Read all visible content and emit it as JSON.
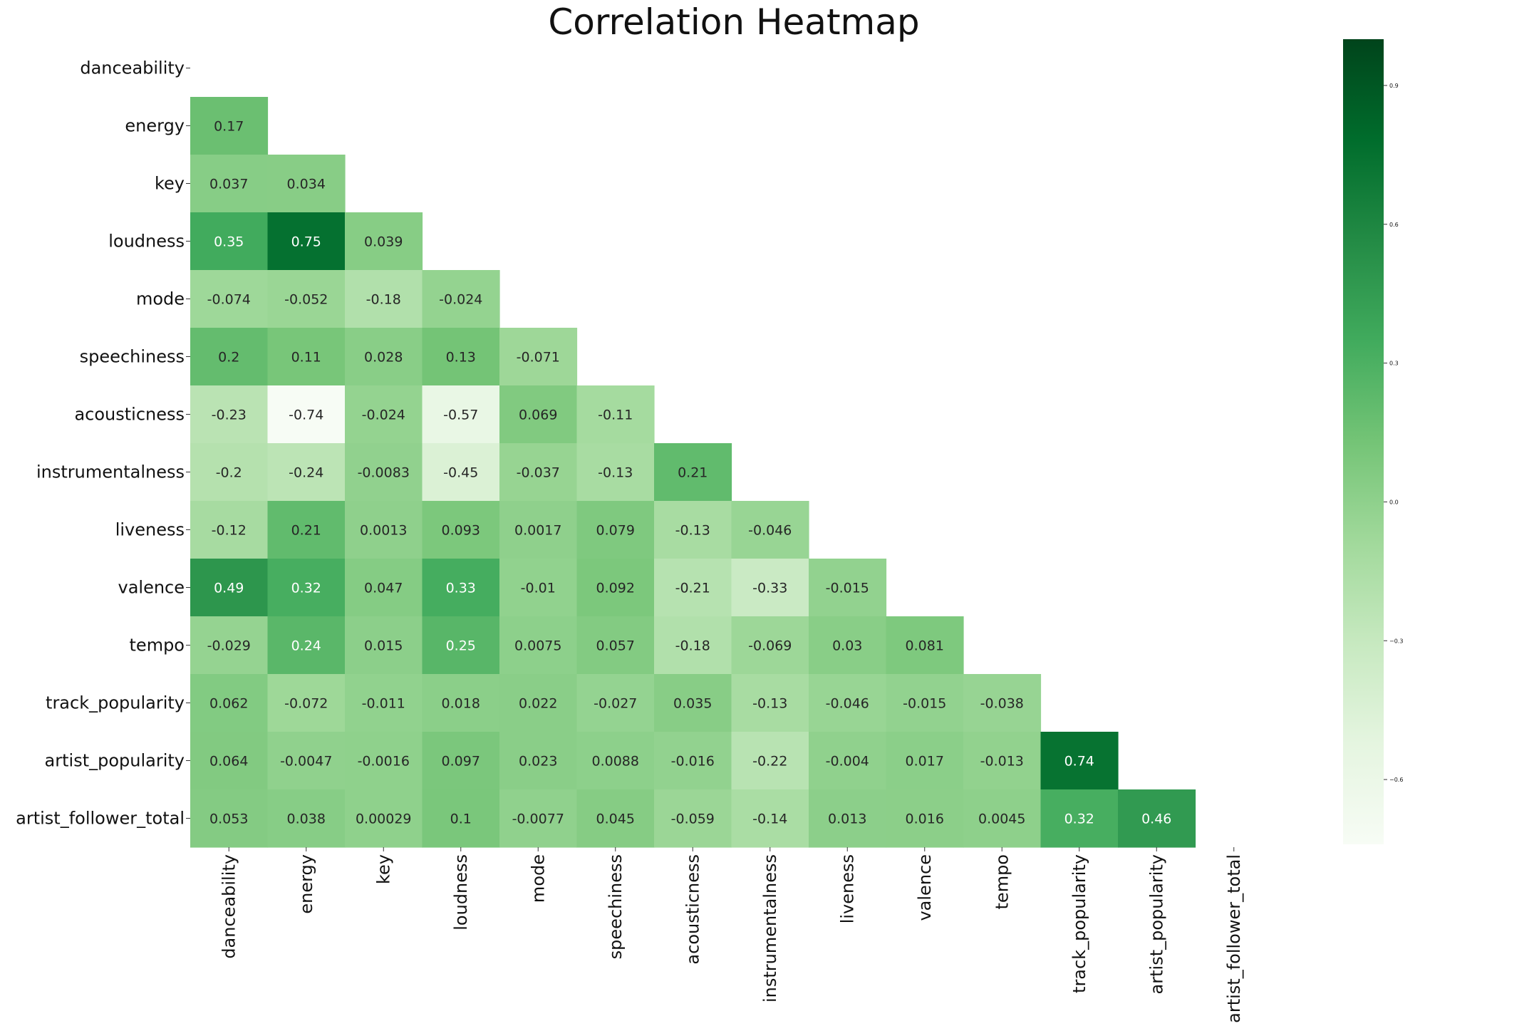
{
  "chart_data": {
    "type": "heatmap",
    "title": "Correlation Heatmap",
    "xlabel": "",
    "ylabel": "",
    "mask": "upper-triangle-including-diagonal",
    "labels": [
      "danceability",
      "energy",
      "key",
      "loudness",
      "mode",
      "speechiness",
      "acousticness",
      "instrumentalness",
      "liveness",
      "valence",
      "tempo",
      "track_popularity",
      "artist_popularity",
      "artist_follower_total"
    ],
    "matrix_lower": [
      [],
      [
        "0.17"
      ],
      [
        "0.037",
        "0.034"
      ],
      [
        "0.35",
        "0.75",
        "0.039"
      ],
      [
        "-0.074",
        "-0.052",
        "-0.18",
        "-0.024"
      ],
      [
        "0.2",
        "0.11",
        "0.028",
        "0.13",
        "-0.071"
      ],
      [
        "-0.23",
        "-0.74",
        "-0.024",
        "-0.57",
        "0.069",
        "-0.11"
      ],
      [
        "-0.2",
        "-0.24",
        "-0.0083",
        "-0.45",
        "-0.037",
        "-0.13",
        "0.21"
      ],
      [
        "-0.12",
        "0.21",
        "0.0013",
        "0.093",
        "0.0017",
        "0.079",
        "-0.13",
        "-0.046"
      ],
      [
        "0.49",
        "0.32",
        "0.047",
        "0.33",
        "-0.01",
        "0.092",
        "-0.21",
        "-0.33",
        "-0.015"
      ],
      [
        "-0.029",
        "0.24",
        "0.015",
        "0.25",
        "0.0075",
        "0.057",
        "-0.18",
        "-0.069",
        "0.03",
        "0.081"
      ],
      [
        "0.062",
        "-0.072",
        "-0.011",
        "0.018",
        "0.022",
        "-0.027",
        "0.035",
        "-0.13",
        "-0.046",
        "-0.015",
        "-0.038"
      ],
      [
        "0.064",
        "-0.0047",
        "-0.0016",
        "0.097",
        "0.023",
        "0.0088",
        "-0.016",
        "-0.22",
        "-0.004",
        "0.017",
        "-0.013",
        "0.74"
      ],
      [
        "0.053",
        "0.038",
        "0.00029",
        "0.1",
        "-0.0077",
        "0.045",
        "-0.059",
        "-0.14",
        "0.013",
        "0.016",
        "0.0045",
        "0.32",
        "0.46"
      ]
    ],
    "colormap": "Greens",
    "color_range": [
      -0.74,
      1.0
    ],
    "colorbar": {
      "ticks": [
        0.9,
        0.6,
        0.3,
        0.0,
        -0.3,
        -0.6
      ],
      "tick_labels": [
        "0.9",
        "0.6",
        "0.3",
        "0.0",
        "−0.3",
        "−0.6"
      ]
    },
    "legend": "colorbar-right",
    "grid": false
  }
}
